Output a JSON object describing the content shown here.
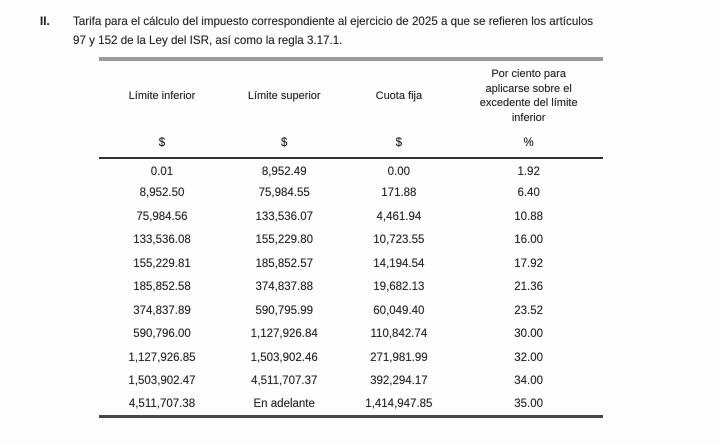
{
  "page": {
    "item_number": "II.",
    "paragraph": "Tarifa para el cálculo del impuesto correspondiente al ejercicio de 2025 a que se refieren los artículos\n97 y 152 de la Ley del ISR, así como la regla 3.17.1."
  },
  "table": {
    "headers": [
      "Límite inferior",
      "Límite superior",
      "Cuota fija",
      "Por ciento para\naplicarse sobre el\nexcedente del límite\ninferior"
    ],
    "units": [
      "$",
      "$",
      "$",
      "%"
    ],
    "rows": [
      [
        "0.01",
        "8,952.49",
        "0.00",
        "1.92"
      ],
      [
        "8,952.50",
        "75,984.55",
        "171.88",
        "6.40"
      ],
      [
        "75,984.56",
        "133,536.07",
        "4,461.94",
        "10.88"
      ],
      [
        "133,536.08",
        "155,229.80",
        "10,723.55",
        "16.00"
      ],
      [
        "155,229.81",
        "185,852.57",
        "14,194.54",
        "17.92"
      ],
      [
        "185,852.58",
        "374,837.88",
        "19,682.13",
        "21.36"
      ],
      [
        "374,837.89",
        "590,795.99",
        "60,049.40",
        "23.52"
      ],
      [
        "590,796.00",
        "1,127,926.84",
        "110,842.74",
        "30.00"
      ],
      [
        "1,127,926.85",
        "1,503,902.46",
        "271,981.99",
        "32.00"
      ],
      [
        "1,503,902.47",
        "4,511,707.37",
        "392,294.17",
        "34.00"
      ],
      [
        "4,511,707.38",
        "En adelante",
        "1,414,947.85",
        "35.00"
      ]
    ]
  },
  "colors": {
    "text": "#262626",
    "rule_top": "#9b9b9b",
    "rule_mid": "#333333",
    "rule_bottom": "#474747",
    "background": "#fdfdfd"
  }
}
